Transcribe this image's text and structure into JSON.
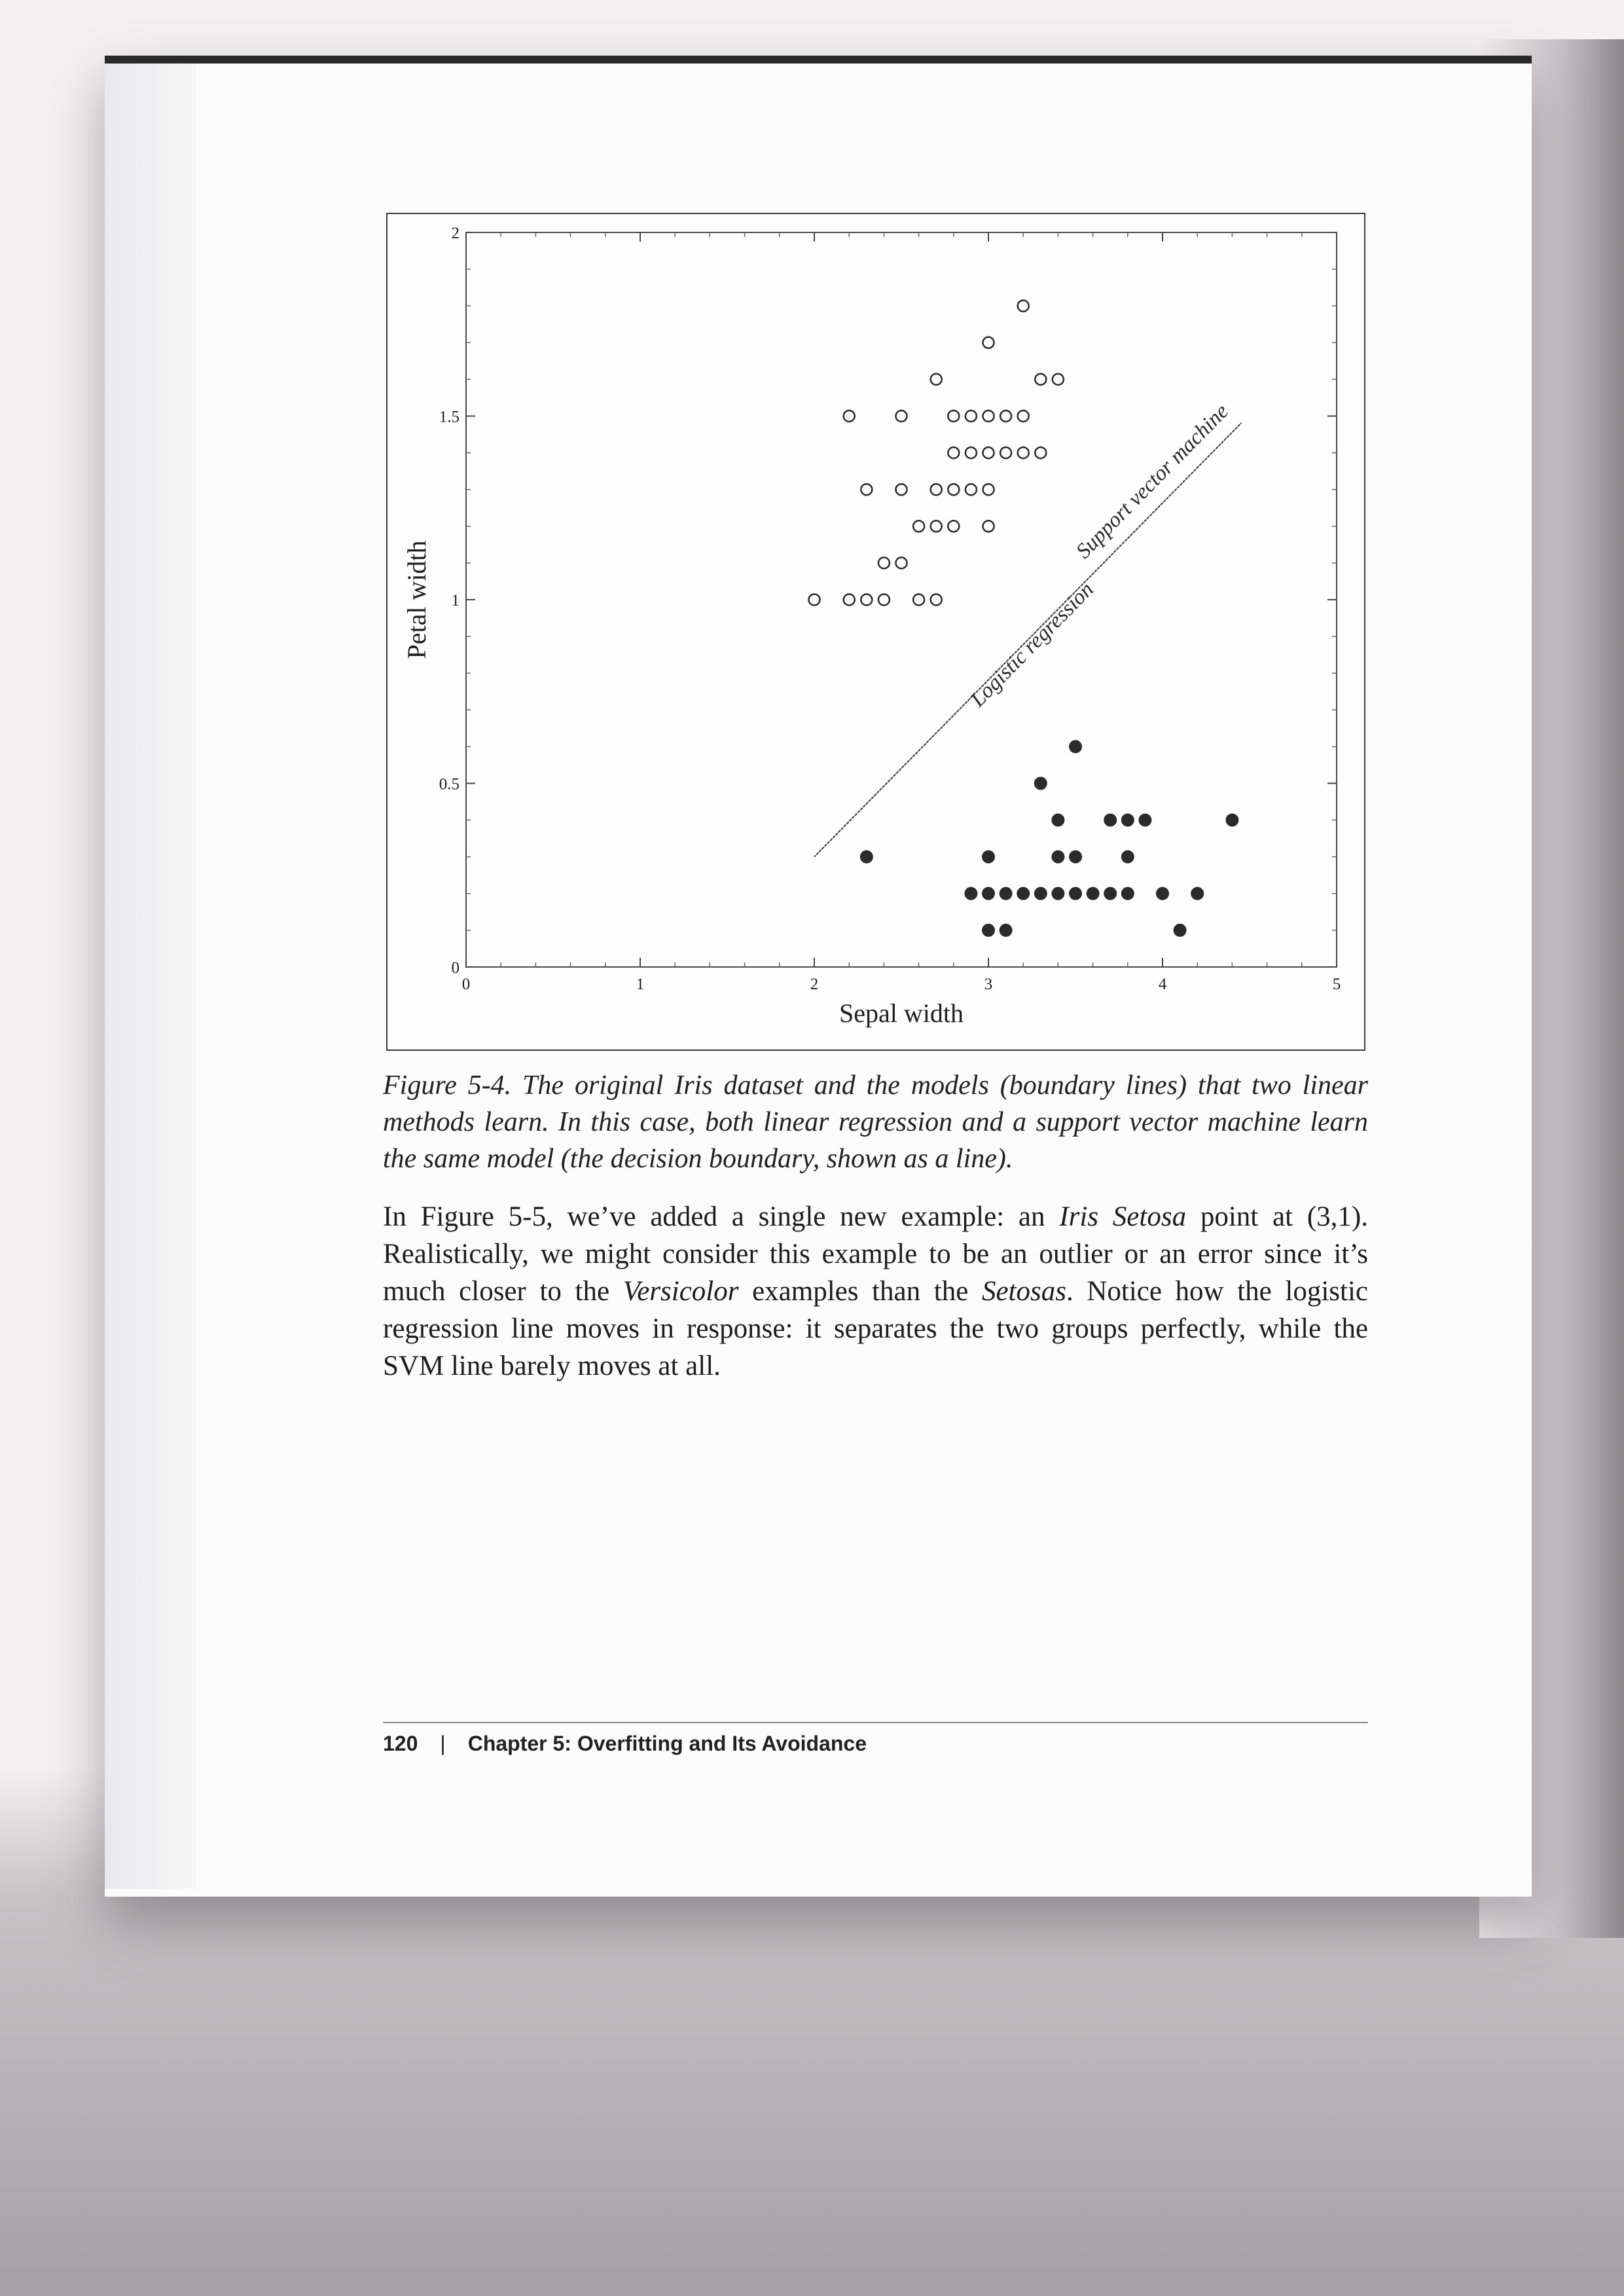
{
  "figure": {
    "caption": "Figure 5-4. The original Iris dataset and the models (boundary lines) that two linear methods learn. In this case, both linear regression and a support vector machine learn the same model (the decision boundary, shown as a line)."
  },
  "body": {
    "p1_a": "In Figure 5-5, we’ve added a single new example: an ",
    "p1_setosa": "Iris Setosa",
    "p1_b": " point at (3,1). Realistically, we might consider this example to be an outlier or an error since it’s much closer to the ",
    "p1_versicolor": "Versicolor",
    "p1_c": " examples than the ",
    "p1_setosas": "Setosas",
    "p1_d": ". Notice how the logistic regression line moves in response: it separates the two groups perfectly, while the SVM line barely moves at all."
  },
  "footer": {
    "page_number": "120",
    "separator": "|",
    "chapter": "Chapter 5: Overfitting and Its Avoidance"
  },
  "chart_data": {
    "type": "scatter",
    "title": "",
    "xlabel": "Sepal width",
    "ylabel": "Petal width",
    "xlim": [
      0,
      5
    ],
    "ylim": [
      0,
      2
    ],
    "xticks": [
      "0",
      "1",
      "2",
      "3",
      "4",
      "5"
    ],
    "yticks": [
      "0",
      "0.5",
      "1",
      "1.5",
      "2"
    ],
    "grid": false,
    "series": [
      {
        "marker": "open-circle",
        "color": "#2b2b2b",
        "points": [
          [
            3.2,
            1.8
          ],
          [
            3.0,
            1.7
          ],
          [
            2.7,
            1.6
          ],
          [
            3.3,
            1.6
          ],
          [
            3.4,
            1.6
          ],
          [
            2.2,
            1.5
          ],
          [
            2.5,
            1.5
          ],
          [
            2.8,
            1.5
          ],
          [
            2.9,
            1.5
          ],
          [
            3.0,
            1.5
          ],
          [
            3.1,
            1.5
          ],
          [
            3.2,
            1.5
          ],
          [
            2.8,
            1.4
          ],
          [
            2.9,
            1.4
          ],
          [
            3.0,
            1.4
          ],
          [
            3.1,
            1.4
          ],
          [
            3.2,
            1.4
          ],
          [
            3.3,
            1.4
          ],
          [
            2.3,
            1.3
          ],
          [
            2.5,
            1.3
          ],
          [
            2.7,
            1.3
          ],
          [
            2.8,
            1.3
          ],
          [
            2.9,
            1.3
          ],
          [
            3.0,
            1.3
          ],
          [
            2.6,
            1.2
          ],
          [
            2.7,
            1.2
          ],
          [
            2.8,
            1.2
          ],
          [
            3.0,
            1.2
          ],
          [
            2.4,
            1.1
          ],
          [
            2.5,
            1.1
          ],
          [
            2.0,
            1.0
          ],
          [
            2.2,
            1.0
          ],
          [
            2.3,
            1.0
          ],
          [
            2.4,
            1.0
          ],
          [
            2.6,
            1.0
          ],
          [
            2.7,
            1.0
          ]
        ]
      },
      {
        "marker": "filled-circle",
        "color": "#2b2b2b",
        "points": [
          [
            3.5,
            0.6
          ],
          [
            3.3,
            0.5
          ],
          [
            3.4,
            0.4
          ],
          [
            3.7,
            0.4
          ],
          [
            3.8,
            0.4
          ],
          [
            3.9,
            0.4
          ],
          [
            4.4,
            0.4
          ],
          [
            2.3,
            0.3
          ],
          [
            3.0,
            0.3
          ],
          [
            3.4,
            0.3
          ],
          [
            3.5,
            0.3
          ],
          [
            3.8,
            0.3
          ],
          [
            2.9,
            0.2
          ],
          [
            3.0,
            0.2
          ],
          [
            3.1,
            0.2
          ],
          [
            3.2,
            0.2
          ],
          [
            3.3,
            0.2
          ],
          [
            3.4,
            0.2
          ],
          [
            3.5,
            0.2
          ],
          [
            3.6,
            0.2
          ],
          [
            3.7,
            0.2
          ],
          [
            3.8,
            0.2
          ],
          [
            4.0,
            0.2
          ],
          [
            4.2,
            0.2
          ],
          [
            3.0,
            0.1
          ],
          [
            3.1,
            0.1
          ],
          [
            4.1,
            0.1
          ]
        ]
      }
    ],
    "boundary_lines": [
      {
        "label": "Logistic regression",
        "from": [
          2.0,
          0.3
        ],
        "to": [
          4.45,
          1.48
        ]
      },
      {
        "label": "Support vector machine",
        "from": [
          2.0,
          0.3
        ],
        "to": [
          4.45,
          1.48
        ]
      }
    ]
  }
}
